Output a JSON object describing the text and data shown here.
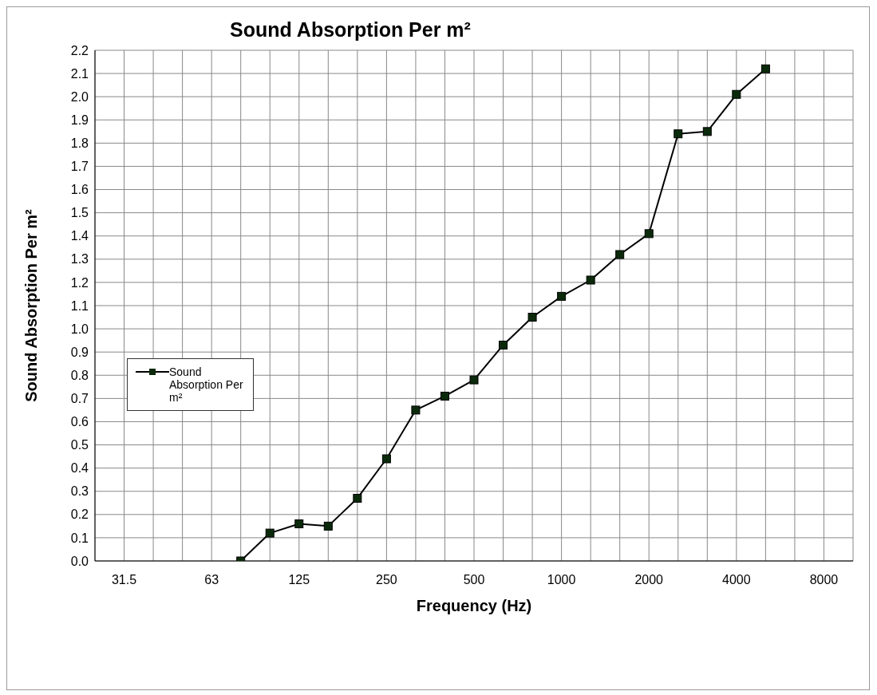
{
  "chart_data": {
    "type": "line",
    "title": "Sound Absorption Per m²",
    "xlabel": "Frequency (Hz)",
    "ylabel": "Sound Absorption Per m²",
    "categories": [
      null,
      "31.5",
      null,
      null,
      "63",
      null,
      null,
      "125",
      null,
      null,
      "250",
      null,
      null,
      "500",
      null,
      null,
      "1000",
      null,
      null,
      "2000",
      null,
      null,
      "4000",
      null,
      null,
      "8000",
      null
    ],
    "series": [
      {
        "name": "Sound Absorption Per m²",
        "color": "#000000",
        "values": [
          null,
          null,
          null,
          null,
          null,
          0.0,
          0.12,
          0.16,
          0.15,
          0.27,
          0.44,
          0.65,
          0.71,
          0.78,
          0.93,
          1.05,
          1.14,
          1.21,
          1.32,
          1.41,
          1.84,
          1.85,
          2.01,
          2.12,
          null,
          null,
          null
        ]
      }
    ],
    "ylim": [
      0,
      2.2
    ],
    "yticks": [
      {
        "value": 0,
        "label": "0.0"
      },
      {
        "value": 0.1,
        "label": "0.1"
      },
      {
        "value": 0.2,
        "label": "0.2"
      },
      {
        "value": 0.3,
        "label": "0.3"
      },
      {
        "value": 0.4,
        "label": "0.4"
      },
      {
        "value": 0.5,
        "label": "0.5"
      },
      {
        "value": 0.6,
        "label": "0.6"
      },
      {
        "value": 0.7,
        "label": "0.7"
      },
      {
        "value": 0.8,
        "label": "0.8"
      },
      {
        "value": 0.9,
        "label": "0.9"
      },
      {
        "value": 1,
        "label": "1.0"
      },
      {
        "value": 1.1,
        "label": "1.1"
      },
      {
        "value": 1.2,
        "label": "1.2"
      },
      {
        "value": 1.3,
        "label": "1.3"
      },
      {
        "value": 1.4,
        "label": "1.4"
      },
      {
        "value": 1.5,
        "label": "1.5"
      },
      {
        "value": 1.6,
        "label": "1.6"
      },
      {
        "value": 1.7,
        "label": "1.7"
      },
      {
        "value": 1.8,
        "label": "1.8"
      },
      {
        "value": 1.9,
        "label": "1.9"
      },
      {
        "value": 2,
        "label": "2.0"
      },
      {
        "value": 2.1,
        "label": "2.1"
      },
      {
        "value": 2.2,
        "label": "2.2"
      }
    ],
    "grid": true,
    "legend": "left",
    "marker": "square",
    "line_style": "solid"
  }
}
